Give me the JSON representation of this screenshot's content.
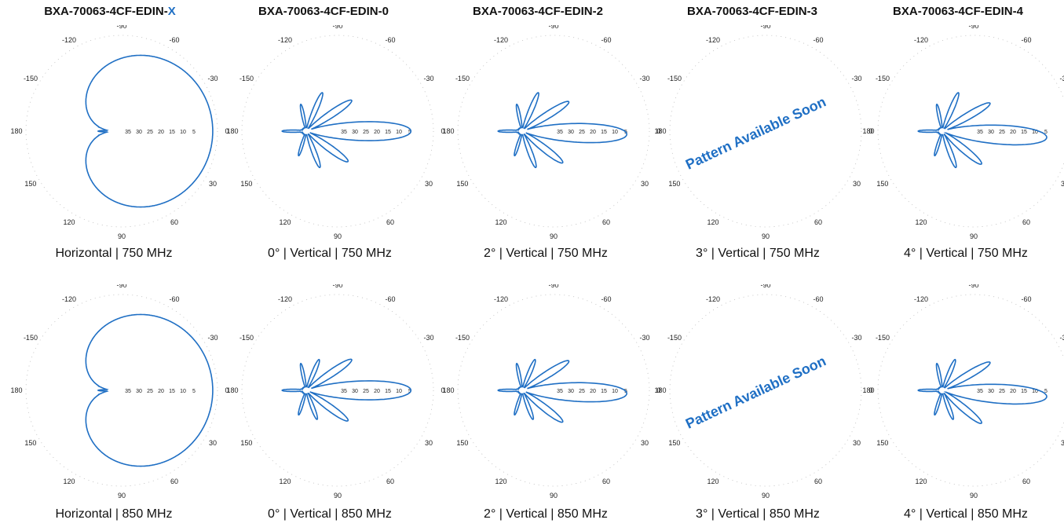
{
  "colors": {
    "pattern": "#1f6fc4",
    "axis": "#bbbbbb",
    "text": "#111111"
  },
  "columns": [
    {
      "title_main": "BXA-70063-4CF-EDIN-",
      "title_suffix": "X"
    },
    {
      "title_main": "BXA-70063-4CF-EDIN-0",
      "title_suffix": ""
    },
    {
      "title_main": "BXA-70063-4CF-EDIN-2",
      "title_suffix": ""
    },
    {
      "title_main": "BXA-70063-4CF-EDIN-3",
      "title_suffix": ""
    },
    {
      "title_main": "BXA-70063-4CF-EDIN-4",
      "title_suffix": ""
    }
  ],
  "angle_labels": [
    "0",
    "-30",
    "-60",
    "-90",
    "-120",
    "-150",
    "180",
    "150",
    "120",
    "90",
    "60",
    "30"
  ],
  "radial_labels": [
    "35",
    "30",
    "25",
    "20",
    "15",
    "10",
    "5"
  ],
  "placeholder_text": "Pattern Available Soon",
  "chart_data": [
    {
      "type": "polar",
      "row": 0,
      "col": 0,
      "pattern": "horizontal",
      "caption": "Horizontal |  750 MHz"
    },
    {
      "type": "polar",
      "row": 0,
      "col": 1,
      "pattern": "vertical",
      "tilt_deg": 0,
      "caption": "0°  |  Vertical |  750 MHz"
    },
    {
      "type": "polar",
      "row": 0,
      "col": 2,
      "pattern": "vertical",
      "tilt_deg": 2,
      "caption": "2°  |  Vertical |  750 MHz"
    },
    {
      "type": "polar",
      "row": 0,
      "col": 3,
      "pattern": "none",
      "tilt_deg": 3,
      "caption": "3°  |  Vertical |  750 MHz"
    },
    {
      "type": "polar",
      "row": 0,
      "col": 4,
      "pattern": "vertical",
      "tilt_deg": 4,
      "caption": "4°  |  Vertical |  750 MHz"
    },
    {
      "type": "polar",
      "row": 1,
      "col": 0,
      "pattern": "horizontal",
      "caption": "Horizontal |  850 MHz"
    },
    {
      "type": "polar",
      "row": 1,
      "col": 1,
      "pattern": "vertical",
      "tilt_deg": 0,
      "caption": "0°  |  Vertical |  850 MHz"
    },
    {
      "type": "polar",
      "row": 1,
      "col": 2,
      "pattern": "vertical",
      "tilt_deg": 2,
      "caption": "2°  |  Vertical |  850 MHz"
    },
    {
      "type": "polar",
      "row": 1,
      "col": 3,
      "pattern": "none",
      "tilt_deg": 3,
      "caption": "3°  |  Vertical |  850 MHz"
    },
    {
      "type": "polar",
      "row": 1,
      "col": 4,
      "pattern": "vertical",
      "tilt_deg": 4,
      "caption": "4°  |  Vertical |  850 MHz"
    }
  ]
}
